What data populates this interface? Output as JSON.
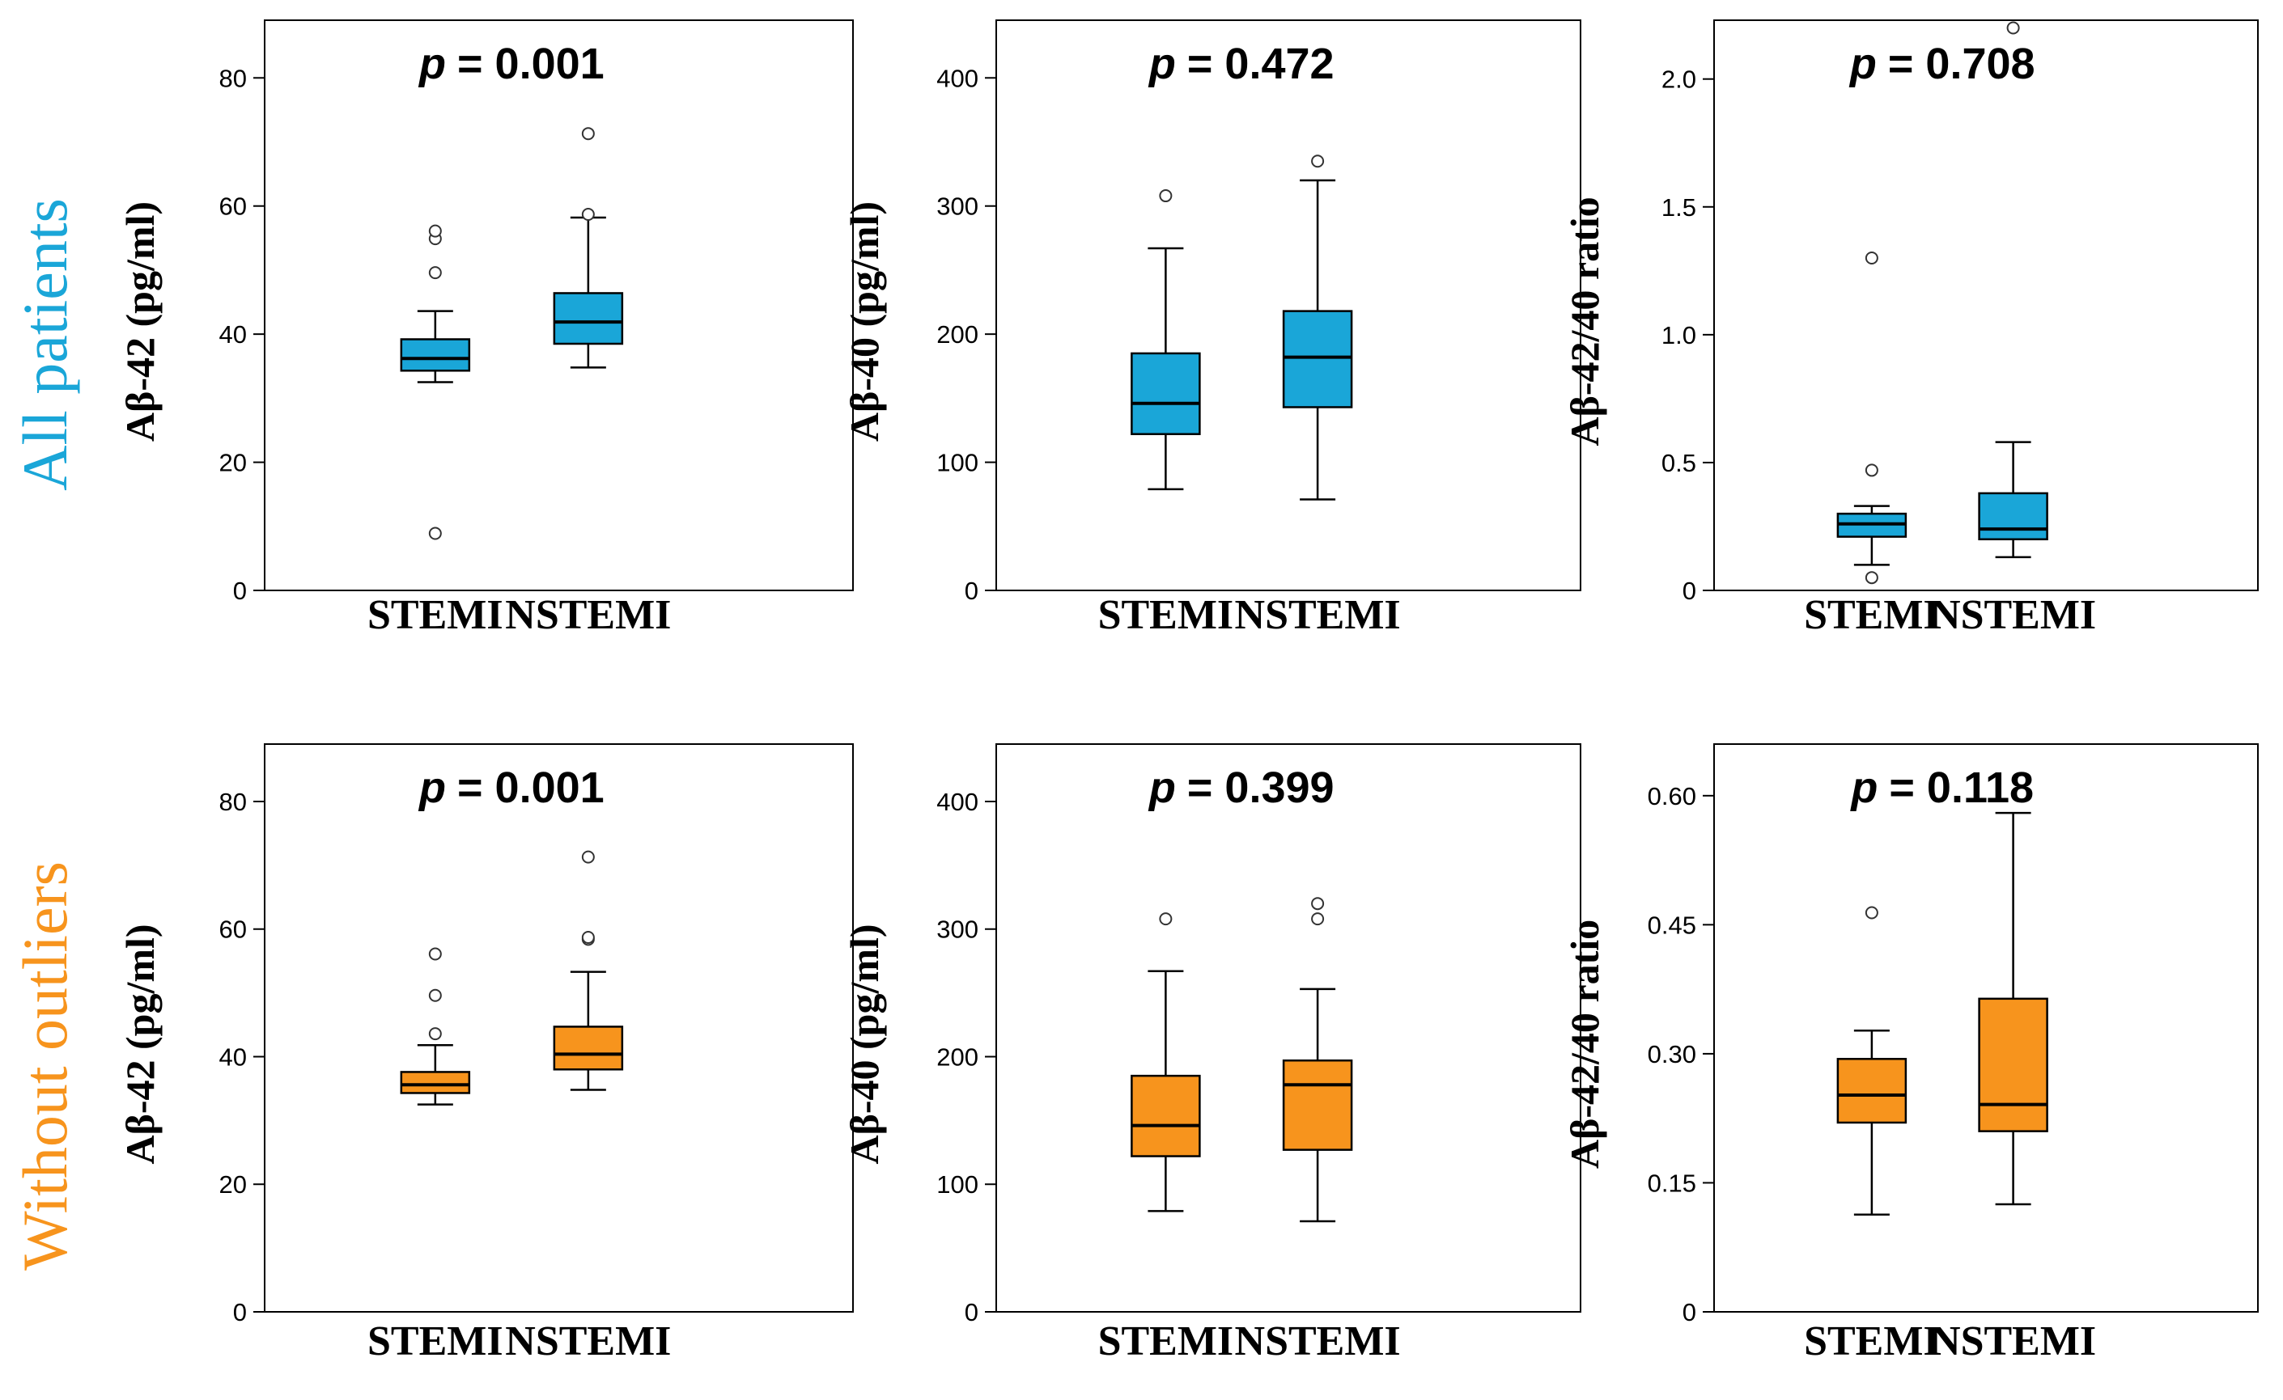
{
  "row_labels": [
    {
      "text": "All patients",
      "color": "#1aa6d8"
    },
    {
      "text": "Without outliers",
      "color": "#f7941d"
    }
  ],
  "colors": {
    "all_box": "#1aa6d8",
    "without_box": "#f7941d",
    "axis": "#000000",
    "outlier_stroke": "#333333"
  },
  "chart_data": [
    {
      "type": "box",
      "row": 0,
      "col": 0,
      "p_label": "p",
      "p_value": "= 0.001",
      "ylabel": "Aβ-42 (pg/ml)",
      "ylim": [
        0,
        89
      ],
      "yticks": [
        0,
        20,
        40,
        60,
        80
      ],
      "ytick_labels": [
        "0",
        "20",
        "40",
        "60",
        "80"
      ],
      "categories": [
        "STEMI",
        "NSTEMI"
      ],
      "boxes": [
        {
          "whisker_low": 32.5,
          "q1": 34.3,
          "median": 36.2,
          "q3": 39.2,
          "whisker_high": 43.6,
          "outliers": [
            8.9,
            49.6,
            54.9,
            56.1
          ]
        },
        {
          "whisker_low": 34.8,
          "q1": 38.5,
          "median": 41.9,
          "q3": 46.4,
          "whisker_high": 58.2,
          "outliers": [
            58.7,
            71.3
          ]
        }
      ]
    },
    {
      "type": "box",
      "row": 0,
      "col": 1,
      "p_label": "p",
      "p_value": "= 0.472",
      "ylabel": "Aβ-40 (pg/ml)",
      "ylim": [
        0,
        445
      ],
      "yticks": [
        0,
        100,
        200,
        300,
        400
      ],
      "ytick_labels": [
        "0",
        "100",
        "200",
        "300",
        "400"
      ],
      "categories": [
        "STEMI",
        "NSTEMI"
      ],
      "boxes": [
        {
          "whisker_low": 79,
          "q1": 122,
          "median": 146,
          "q3": 185,
          "whisker_high": 267,
          "outliers": [
            308
          ]
        },
        {
          "whisker_low": 71,
          "q1": 143,
          "median": 182,
          "q3": 218,
          "whisker_high": 320,
          "outliers": [
            335
          ]
        }
      ]
    },
    {
      "type": "box",
      "row": 0,
      "col": 2,
      "p_label": "p",
      "p_value": "= 0.708",
      "ylabel": "Aβ-42/40 ratio",
      "ylim": [
        0,
        2.23
      ],
      "yticks": [
        0,
        0.5,
        1.0,
        1.5,
        2.0
      ],
      "ytick_labels": [
        "0",
        "0.5",
        "1.0",
        "1.5",
        "2.0"
      ],
      "categories": [
        "STEMI",
        "NSTEMI"
      ],
      "boxes": [
        {
          "whisker_low": 0.1,
          "q1": 0.21,
          "median": 0.26,
          "q3": 0.3,
          "whisker_high": 0.33,
          "outliers": [
            0.05,
            0.47,
            1.3
          ]
        },
        {
          "whisker_low": 0.13,
          "q1": 0.2,
          "median": 0.24,
          "q3": 0.38,
          "whisker_high": 0.58,
          "outliers": [
            2.2
          ]
        }
      ]
    },
    {
      "type": "box",
      "row": 1,
      "col": 0,
      "p_label": "p",
      "p_value": "= 0.001",
      "ylabel": "Aβ-42 (pg/ml)",
      "ylim": [
        0,
        89
      ],
      "yticks": [
        0,
        20,
        40,
        60,
        80
      ],
      "ytick_labels": [
        "0",
        "20",
        "40",
        "60",
        "80"
      ],
      "categories": [
        "STEMI",
        "NSTEMI"
      ],
      "boxes": [
        {
          "whisker_low": 32.5,
          "q1": 34.3,
          "median": 35.6,
          "q3": 37.6,
          "whisker_high": 41.8,
          "outliers": [
            43.6,
            49.6,
            56.1
          ]
        },
        {
          "whisker_low": 34.8,
          "q1": 38.0,
          "median": 40.4,
          "q3": 44.7,
          "whisker_high": 53.3,
          "outliers": [
            58.4,
            58.7,
            71.3
          ]
        }
      ]
    },
    {
      "type": "box",
      "row": 1,
      "col": 1,
      "p_label": "p",
      "p_value": "= 0.399",
      "ylabel": "Aβ-40 (pg/ml)",
      "ylim": [
        0,
        445
      ],
      "yticks": [
        0,
        100,
        200,
        300,
        400
      ],
      "ytick_labels": [
        "0",
        "100",
        "200",
        "300",
        "400"
      ],
      "categories": [
        "STEMI",
        "NSTEMI"
      ],
      "boxes": [
        {
          "whisker_low": 79,
          "q1": 122,
          "median": 146,
          "q3": 185,
          "whisker_high": 267,
          "outliers": [
            308
          ]
        },
        {
          "whisker_low": 71,
          "q1": 127,
          "median": 178,
          "q3": 197,
          "whisker_high": 253,
          "outliers": [
            308,
            320
          ]
        }
      ]
    },
    {
      "type": "box",
      "row": 1,
      "col": 2,
      "p_label": "p",
      "p_value": "= 0.118",
      "ylabel": "Aβ-42/40 ratio",
      "ylim": [
        0,
        0.66
      ],
      "yticks": [
        0,
        0.15,
        0.3,
        0.45,
        0.6
      ],
      "ytick_labels": [
        "0",
        "0.15",
        "0.30",
        "0.45",
        "0.60"
      ],
      "categories": [
        "STEMI",
        "NSTEMI"
      ],
      "boxes": [
        {
          "whisker_low": 0.113,
          "q1": 0.22,
          "median": 0.252,
          "q3": 0.294,
          "whisker_high": 0.327,
          "outliers": [
            0.464
          ]
        },
        {
          "whisker_low": 0.125,
          "q1": 0.21,
          "median": 0.241,
          "q3": 0.364,
          "whisker_high": 0.58,
          "outliers": []
        }
      ]
    }
  ]
}
